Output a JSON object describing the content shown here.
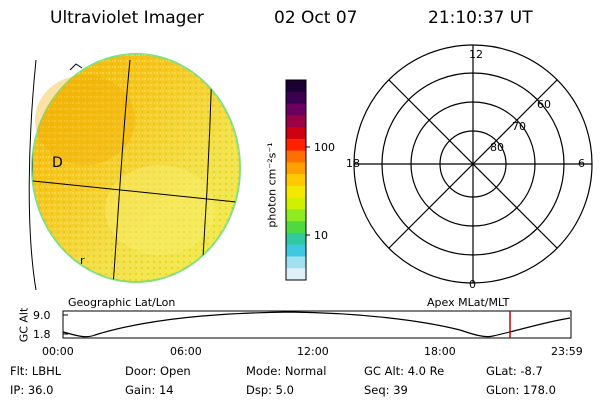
{
  "header": {
    "instrument": "Ultraviolet Imager",
    "date": "02 Oct 07",
    "time": "21:10:37 UT"
  },
  "colorbar": {
    "unit_label": "photon cm⁻²s⁻¹",
    "ticks": [
      "100",
      "10"
    ],
    "colors": [
      "#1a0033",
      "#3a0050",
      "#6a0060",
      "#9a0045",
      "#cc0010",
      "#ff2000",
      "#ff7000",
      "#ffa000",
      "#ffc800",
      "#f5e800",
      "#d0f000",
      "#90ea20",
      "#50d840",
      "#30c8a0",
      "#40c8e0",
      "#a0e0f0",
      "#e0f0f8"
    ]
  },
  "left_panel": {
    "label": "Geographic Lat/Lon",
    "glyphs": [
      "D",
      "r"
    ]
  },
  "right_panel": {
    "label": "Apex MLat/MLT",
    "mlt_labels": {
      "top": "12",
      "left": "18",
      "right": "6",
      "bottom": "0"
    },
    "mlat_labels": [
      "60",
      "70",
      "80"
    ]
  },
  "altitude_plot": {
    "ylabel": "GC Alt",
    "yticks": [
      "9.0",
      "1.8"
    ],
    "xticks": [
      "00:00",
      "06:00",
      "12:00",
      "18:00",
      "23:59"
    ],
    "current_time_color": "#cc0000"
  },
  "info": {
    "flt": "Flt: LBHL",
    "door": "Door: Open",
    "mode": "Mode: Normal",
    "gcalt": "GC Alt: 4.0 Re",
    "glat": "GLat:   -8.7",
    "ip": "IP: 36.0",
    "gain": "Gain: 14",
    "dsp": "Dsp:    5.0",
    "seq": "Seq: 39",
    "glon": "GLon: 178.0"
  }
}
